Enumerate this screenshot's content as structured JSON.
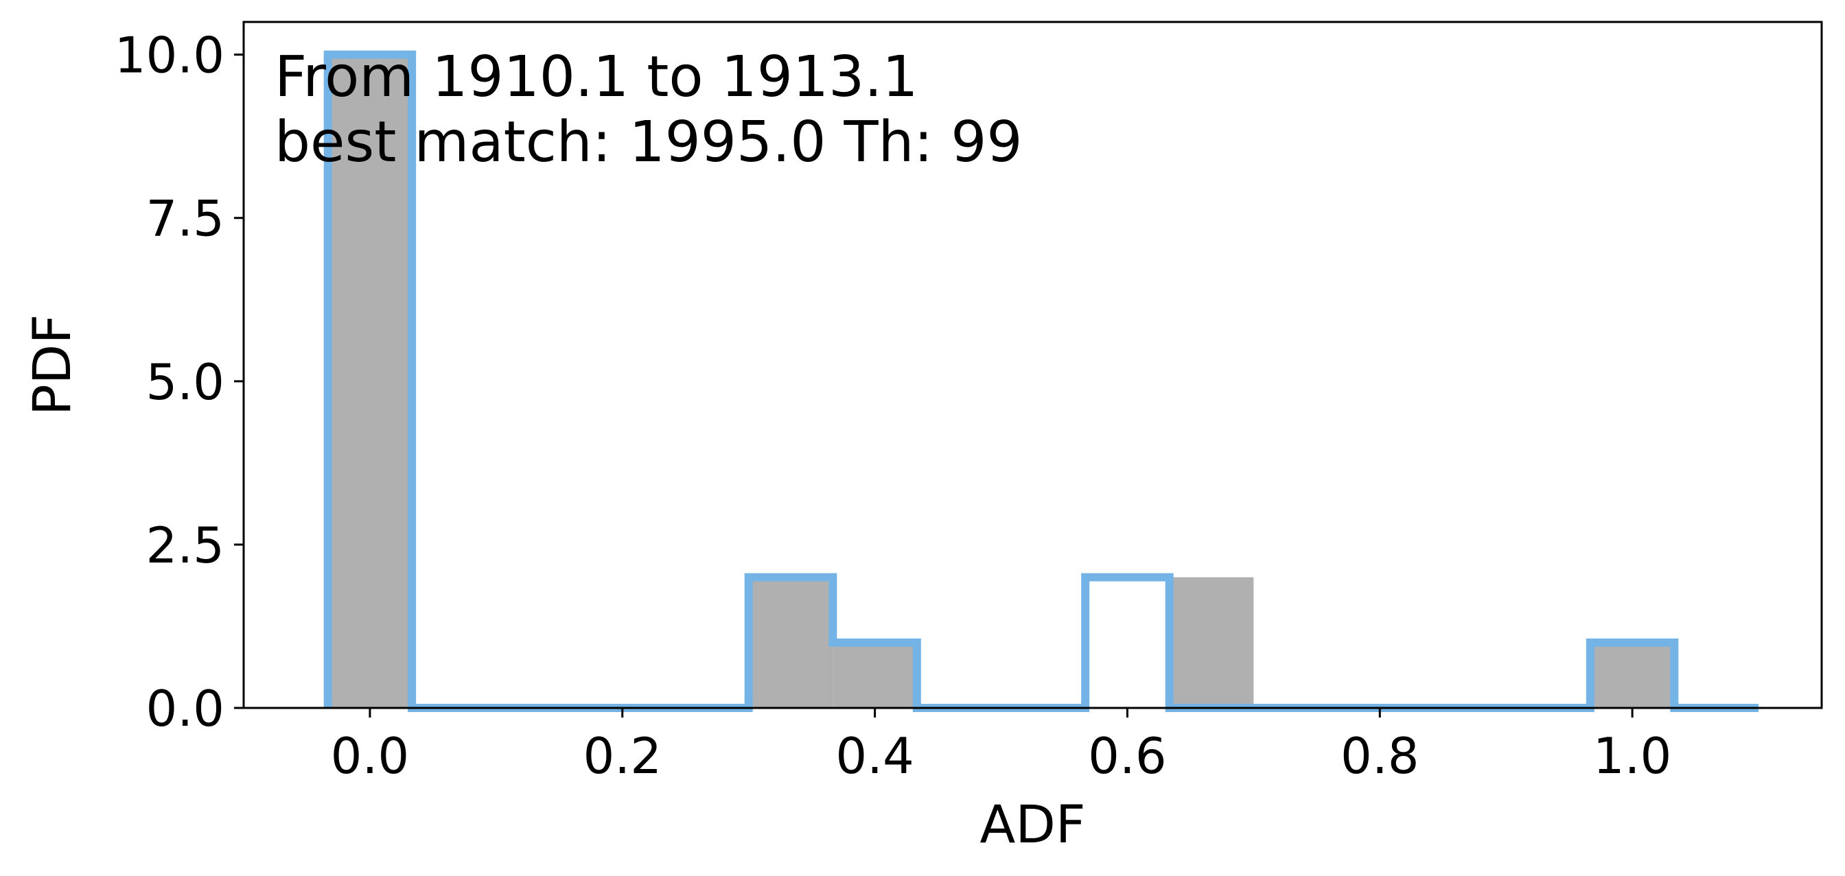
{
  "chart_data": {
    "type": "bar",
    "xlabel": "ADF",
    "ylabel": "PDF",
    "xlim": [
      -0.1,
      1.15
    ],
    "ylim": [
      0,
      10.5
    ],
    "xticks": [
      0.0,
      0.2,
      0.4,
      0.6,
      0.8,
      1.0
    ],
    "xtick_labels": [
      "0.0",
      "0.2",
      "0.4",
      "0.6",
      "0.8",
      "1.0"
    ],
    "yticks": [
      0.0,
      2.5,
      5.0,
      7.5,
      10.0
    ],
    "ytick_labels": [
      "0.0",
      "2.5",
      "5.0",
      "7.5",
      "10.0"
    ],
    "annotation": {
      "line1": "From 1910.1 to 1913.1",
      "line2": "best match: 1995.0  Th: 99"
    },
    "gray_bars": {
      "color": "#b0b0b0",
      "bins": [
        {
          "x0": -0.0333,
          "x1": 0.0333,
          "height": 10
        },
        {
          "x0": 0.3,
          "x1": 0.3667,
          "height": 2
        },
        {
          "x0": 0.3667,
          "x1": 0.4333,
          "height": 1
        },
        {
          "x0": 0.6333,
          "x1": 0.7,
          "height": 2
        },
        {
          "x0": 0.9667,
          "x1": 1.0333,
          "height": 1
        }
      ]
    },
    "blue_step": {
      "color": "#74b3e5",
      "bins": [
        {
          "x0": -0.0333,
          "x1": 0.0333,
          "height": 10
        },
        {
          "x0": 0.0333,
          "x1": 0.3,
          "height": 0
        },
        {
          "x0": 0.3,
          "x1": 0.3667,
          "height": 2
        },
        {
          "x0": 0.3667,
          "x1": 0.4333,
          "height": 1
        },
        {
          "x0": 0.4333,
          "x1": 0.5667,
          "height": 0
        },
        {
          "x0": 0.5667,
          "x1": 0.6333,
          "height": 2
        },
        {
          "x0": 0.6333,
          "x1": 0.9667,
          "height": 0
        },
        {
          "x0": 0.9667,
          "x1": 1.0333,
          "height": 1
        },
        {
          "x0": 1.0333,
          "x1": 1.1,
          "height": 0
        }
      ]
    }
  }
}
